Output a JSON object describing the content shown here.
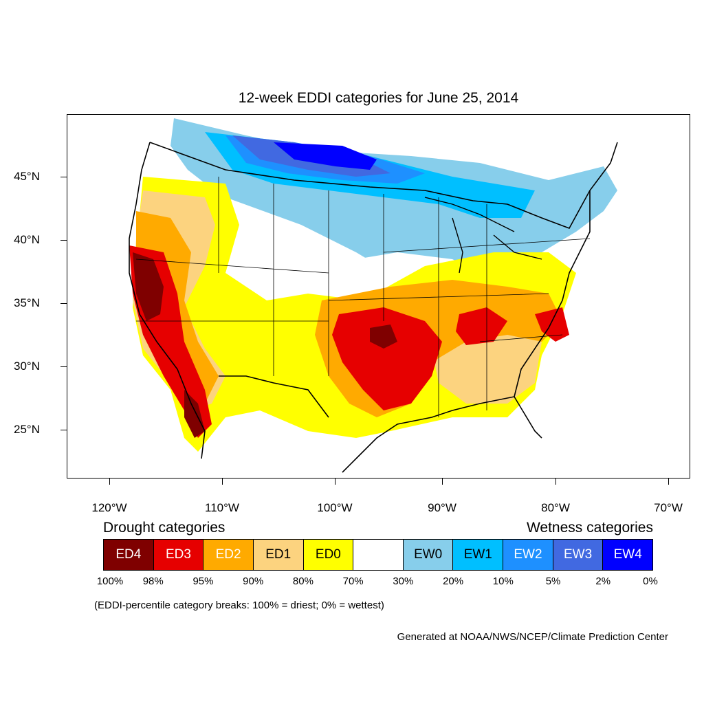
{
  "title": "12-week EDDI categories for June 25, 2014",
  "map": {
    "type": "choropleth",
    "region": "Contiguous United States",
    "lat_ticks": [
      "45°N",
      "40°N",
      "35°N",
      "30°N",
      "25°N"
    ],
    "lon_ticks": [
      "120°W",
      "110°W",
      "100°W",
      "90°W",
      "80°W",
      "70°W"
    ]
  },
  "legend": {
    "drought_heading": "Drought categories",
    "wetness_heading": "Wetness categories",
    "categories": [
      {
        "label": "ED4",
        "color": "#7f0000",
        "text_color": "#ffffff"
      },
      {
        "label": "ED3",
        "color": "#e60000",
        "text_color": "#ffffff"
      },
      {
        "label": "ED2",
        "color": "#ffaa00",
        "text_color": "#ffffff"
      },
      {
        "label": "ED1",
        "color": "#fcd37f",
        "text_color": "#000000"
      },
      {
        "label": "ED0",
        "color": "#ffff00",
        "text_color": "#000000"
      },
      {
        "label": "",
        "color": "#ffffff",
        "text_color": "#000000"
      },
      {
        "label": "EW0",
        "color": "#87ceeb",
        "text_color": "#000000"
      },
      {
        "label": "EW1",
        "color": "#00bfff",
        "text_color": "#000000"
      },
      {
        "label": "EW2",
        "color": "#1e90ff",
        "text_color": "#ffffff"
      },
      {
        "label": "EW3",
        "color": "#4169e1",
        "text_color": "#ffffff"
      },
      {
        "label": "EW4",
        "color": "#0000ff",
        "text_color": "#ffffff"
      }
    ],
    "percentiles": [
      "100%",
      "98%",
      "95%",
      "90%",
      "80%",
      "70%",
      "30%",
      "20%",
      "10%",
      "5%",
      "2%",
      "0%"
    ]
  },
  "note": "(EDDI-percentile category breaks: 100% = driest; 0% = wettest)",
  "credit": "Generated at NOAA/NWS/NCEP/Climate Prediction Center"
}
